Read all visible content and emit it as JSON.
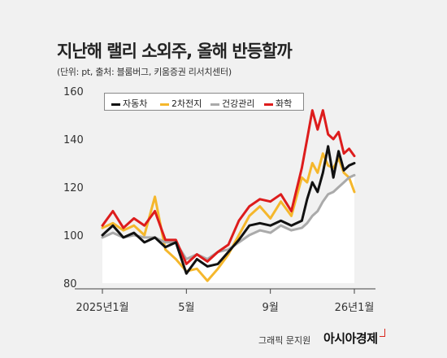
{
  "header": {
    "title": "지난해 랠리 소외주, 올해 반등할까",
    "subtitle": "(단위: pt, 출처: 블룸버그, 키움증권 리서치센터)"
  },
  "footer": {
    "credit": "그래픽 문지원",
    "brand": "아시아경제"
  },
  "colors": {
    "background": "#f1f1f1",
    "area": "#ffffff",
    "자동차": "#111111",
    "2차전지": "#f5b72c",
    "건강관리": "#aaaaaa",
    "화학": "#dd1c1c"
  },
  "chart_data": {
    "type": "line",
    "title": "지난해 랠리 소외주, 올해 반등할까",
    "ylabel": "pt",
    "ylim": [
      80,
      160
    ],
    "yticks": [
      "80",
      "100",
      "120",
      "140",
      "160"
    ],
    "grid": false,
    "legend_position": "top",
    "x_ticks": [
      {
        "label": "2025년1월",
        "pos": 0
      },
      {
        "label": "5월",
        "pos": 4
      },
      {
        "label": "9월",
        "pos": 8
      },
      {
        "label": "26년1월",
        "pos": 12
      }
    ],
    "x": [
      0,
      0.5,
      1,
      1.5,
      2,
      2.5,
      3,
      3.5,
      4,
      4.5,
      5,
      5.5,
      6,
      6.5,
      7,
      7.5,
      8,
      8.5,
      9,
      9.5,
      9.75,
      10,
      10.25,
      10.5,
      10.75,
      11,
      11.25,
      11.5,
      11.75,
      12
    ],
    "series": [
      {
        "name": "자동차",
        "color": "#111111",
        "values": [
          100,
          104,
          99,
          101,
          97,
          99,
          95,
          97,
          84,
          90,
          87,
          88,
          93,
          98,
          104,
          105,
          104,
          106,
          104,
          106,
          115,
          122,
          118,
          126,
          137,
          124,
          135,
          127,
          129,
          130
        ]
      },
      {
        "name": "2차전지",
        "color": "#f5b72c",
        "values": [
          103,
          105,
          102,
          104,
          100,
          116,
          94,
          90,
          85,
          86,
          81,
          86,
          92,
          100,
          108,
          112,
          107,
          114,
          108,
          124,
          122,
          130,
          126,
          134,
          129,
          128,
          132,
          126,
          124,
          118
        ]
      },
      {
        "name": "건강관리",
        "color": "#aaaaaa",
        "values": [
          99,
          101,
          99,
          100,
          99,
          99,
          97,
          97,
          90,
          92,
          90,
          93,
          94,
          97,
          100,
          102,
          101,
          104,
          102,
          103,
          105,
          108,
          110,
          114,
          117,
          118,
          120,
          122,
          124,
          125
        ]
      },
      {
        "name": "화학",
        "color": "#dd1c1c",
        "values": [
          104,
          110,
          103,
          107,
          104,
          110,
          98,
          98,
          88,
          92,
          89,
          93,
          96,
          106,
          112,
          115,
          114,
          117,
          110,
          128,
          140,
          152,
          144,
          152,
          142,
          140,
          143,
          134,
          136,
          133
        ]
      }
    ]
  }
}
